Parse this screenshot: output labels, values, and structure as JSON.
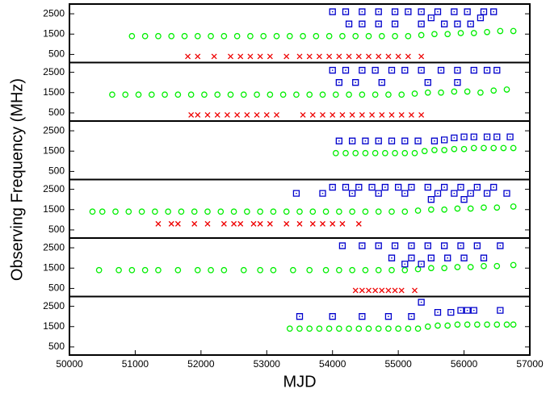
{
  "chart_data": [
    {
      "type": "scatter",
      "ylabel": "Observing Frequency (MHz)",
      "xlim": [
        50000,
        57000
      ],
      "ylim": [
        100,
        2980
      ],
      "yticks": [
        500,
        1500,
        2500
      ],
      "series": [
        {
          "color": "#00ee00",
          "marker": "circle",
          "x": [
            50950,
            51150,
            51350,
            51550,
            51750,
            51950,
            52150,
            52350,
            52550,
            52750,
            52950,
            53150,
            53350,
            53550,
            53750,
            53950,
            54150,
            54350,
            54550,
            54750,
            54950,
            55150,
            55350,
            55550,
            55750,
            55950,
            56150,
            56350,
            56550,
            56750
          ],
          "values": [
            1400,
            1400,
            1400,
            1400,
            1400,
            1400,
            1400,
            1400,
            1400,
            1400,
            1400,
            1400,
            1400,
            1400,
            1400,
            1400,
            1400,
            1400,
            1400,
            1400,
            1400,
            1400,
            1450,
            1500,
            1500,
            1550,
            1550,
            1600,
            1650,
            1650
          ]
        },
        {
          "color": "#ee0000",
          "marker": "cross",
          "x": [
            51800,
            51950,
            52200,
            52450,
            52600,
            52750,
            52900,
            53050,
            53300,
            53500,
            53650,
            53800,
            53950,
            54100,
            54250,
            54400,
            54550,
            54700,
            54850,
            55000,
            55150,
            55350
          ],
          "values": [
            400,
            400,
            400,
            400,
            400,
            400,
            400,
            400,
            400,
            400,
            400,
            400,
            400,
            400,
            400,
            400,
            400,
            400,
            400,
            400,
            400,
            400
          ]
        },
        {
          "color": "#0000cc",
          "marker": "square",
          "x": [
            54000,
            54200,
            54450,
            54700,
            54950,
            55150,
            55350,
            55600,
            55850,
            56050,
            56300,
            56450,
            54250,
            54450,
            54700,
            54950,
            55350,
            55700,
            55900,
            56100,
            55500,
            56250
          ],
          "values": [
            2600,
            2600,
            2600,
            2600,
            2600,
            2600,
            2600,
            2600,
            2600,
            2600,
            2600,
            2600,
            2000,
            2000,
            2000,
            2000,
            2000,
            2000,
            2000,
            2000,
            2300,
            2300
          ]
        }
      ]
    },
    {
      "type": "scatter",
      "xlim": [
        50000,
        57000
      ],
      "ylim": [
        100,
        2980
      ],
      "yticks": [
        500,
        1500,
        2500
      ],
      "series": [
        {
          "color": "#00ee00",
          "marker": "circle",
          "x": [
            50650,
            50850,
            51050,
            51250,
            51450,
            51650,
            51850,
            52050,
            52250,
            52450,
            52650,
            52850,
            53050,
            53250,
            53450,
            53650,
            53850,
            54050,
            54250,
            54450,
            54650,
            54850,
            55050,
            55250,
            55450,
            55650,
            55850,
            56050,
            56250,
            56450,
            56650
          ],
          "values": [
            1400,
            1400,
            1400,
            1400,
            1400,
            1400,
            1400,
            1400,
            1400,
            1400,
            1400,
            1400,
            1400,
            1400,
            1400,
            1400,
            1400,
            1400,
            1400,
            1400,
            1400,
            1400,
            1400,
            1450,
            1500,
            1500,
            1550,
            1550,
            1500,
            1600,
            1650
          ]
        },
        {
          "color": "#ee0000",
          "marker": "cross",
          "x": [
            51850,
            51950,
            52100,
            52250,
            52400,
            52550,
            52700,
            52850,
            53000,
            53150,
            53550,
            53700,
            53850,
            54000,
            54150,
            54300,
            54450,
            54600,
            54750,
            54900,
            55050,
            55200,
            55350
          ],
          "values": [
            400,
            400,
            400,
            400,
            400,
            400,
            400,
            400,
            400,
            400,
            400,
            400,
            400,
            400,
            400,
            400,
            400,
            400,
            400,
            400,
            400,
            400,
            400
          ]
        },
        {
          "color": "#0000cc",
          "marker": "square",
          "x": [
            54000,
            54200,
            54450,
            54650,
            54900,
            55100,
            55350,
            55650,
            55900,
            56150,
            56350,
            56500,
            54100,
            54350,
            54750,
            55450,
            55900
          ],
          "values": [
            2600,
            2600,
            2600,
            2600,
            2600,
            2600,
            2600,
            2600,
            2600,
            2600,
            2600,
            2600,
            2000,
            2000,
            2000,
            2000,
            2000
          ]
        }
      ]
    },
    {
      "type": "scatter",
      "xlim": [
        50000,
        57000
      ],
      "ylim": [
        100,
        2980
      ],
      "yticks": [
        500,
        1500,
        2500
      ],
      "series": [
        {
          "color": "#00ee00",
          "marker": "circle",
          "x": [
            54050,
            54200,
            54350,
            54500,
            54650,
            54800,
            54950,
            55100,
            55250,
            55400,
            55550,
            55700,
            55850,
            56000,
            56150,
            56300,
            56450,
            56600,
            56750
          ],
          "values": [
            1400,
            1400,
            1400,
            1400,
            1400,
            1400,
            1400,
            1400,
            1400,
            1500,
            1550,
            1550,
            1600,
            1600,
            1650,
            1650,
            1650,
            1650,
            1650
          ]
        },
        {
          "color": "#0000cc",
          "marker": "square",
          "x": [
            54100,
            54300,
            54500,
            54700,
            54900,
            55100,
            55300,
            55550,
            55700,
            55850,
            56000,
            56150,
            56350,
            56500,
            56700
          ],
          "values": [
            2000,
            2000,
            2000,
            2000,
            2000,
            2000,
            2000,
            2000,
            2050,
            2150,
            2200,
            2200,
            2200,
            2200,
            2200
          ]
        }
      ]
    },
    {
      "type": "scatter",
      "xlim": [
        50000,
        57000
      ],
      "ylim": [
        100,
        2980
      ],
      "yticks": [
        500,
        1500,
        2500
      ],
      "series": [
        {
          "color": "#00ee00",
          "marker": "circle",
          "x": [
            50350,
            50500,
            50700,
            50900,
            51100,
            51300,
            51500,
            51700,
            51900,
            52100,
            52300,
            52500,
            52700,
            52900,
            53100,
            53300,
            53500,
            53700,
            53900,
            54100,
            54300,
            54500,
            54700,
            54900,
            55100,
            55300,
            55500,
            55700,
            55900,
            56100,
            56300,
            56500,
            56750
          ],
          "values": [
            1400,
            1400,
            1400,
            1400,
            1400,
            1400,
            1400,
            1400,
            1400,
            1400,
            1400,
            1400,
            1400,
            1400,
            1400,
            1400,
            1400,
            1400,
            1400,
            1400,
            1400,
            1400,
            1400,
            1400,
            1400,
            1450,
            1500,
            1500,
            1550,
            1550,
            1600,
            1600,
            1650
          ]
        },
        {
          "color": "#ee0000",
          "marker": "cross",
          "x": [
            51350,
            51550,
            51650,
            51900,
            52100,
            52350,
            52500,
            52600,
            52800,
            52900,
            53050,
            53300,
            53500,
            53700,
            53850,
            54000,
            54150,
            54400
          ],
          "values": [
            800,
            800,
            800,
            800,
            800,
            800,
            800,
            800,
            800,
            800,
            800,
            800,
            800,
            800,
            800,
            800,
            800,
            800
          ]
        },
        {
          "color": "#0000cc",
          "marker": "square",
          "x": [
            54000,
            54200,
            54400,
            54600,
            54800,
            55000,
            55200,
            55450,
            55700,
            55950,
            56200,
            56450,
            53450,
            53850,
            54300,
            54700,
            55100,
            55600,
            55850,
            56100,
            56350,
            56650,
            55500,
            56000
          ],
          "values": [
            2600,
            2600,
            2600,
            2600,
            2600,
            2600,
            2600,
            2600,
            2600,
            2600,
            2600,
            2600,
            2300,
            2300,
            2300,
            2300,
            2300,
            2300,
            2300,
            2300,
            2300,
            2300,
            2000,
            2000
          ]
        }
      ]
    },
    {
      "type": "scatter",
      "xlim": [
        50000,
        57000
      ],
      "ylim": [
        100,
        2980
      ],
      "yticks": [
        500,
        1500,
        2500
      ],
      "series": [
        {
          "color": "#00ee00",
          "marker": "circle",
          "x": [
            50450,
            50750,
            50950,
            51150,
            51350,
            51650,
            51950,
            52150,
            52350,
            52650,
            52900,
            53100,
            53400,
            53650,
            53900,
            54100,
            54300,
            54500,
            54700,
            54900,
            55100,
            55300,
            55500,
            55700,
            55900,
            56100,
            56300,
            56500,
            56750
          ],
          "values": [
            1400,
            1400,
            1400,
            1400,
            1400,
            1400,
            1400,
            1400,
            1400,
            1400,
            1400,
            1400,
            1400,
            1400,
            1400,
            1400,
            1400,
            1400,
            1400,
            1400,
            1400,
            1450,
            1500,
            1500,
            1550,
            1550,
            1600,
            1600,
            1650
          ]
        },
        {
          "color": "#ee0000",
          "marker": "cross",
          "x": [
            54350,
            54450,
            54550,
            54650,
            54750,
            54850,
            54950,
            55050,
            55250
          ],
          "values": [
            400,
            400,
            400,
            400,
            400,
            400,
            400,
            400,
            400
          ]
        },
        {
          "color": "#0000cc",
          "marker": "square",
          "x": [
            54150,
            54450,
            54700,
            54950,
            55200,
            55450,
            55700,
            55950,
            56200,
            56550,
            54900,
            55200,
            55500,
            55750,
            56000,
            56300,
            55100,
            55350
          ],
          "values": [
            2600,
            2600,
            2600,
            2600,
            2600,
            2600,
            2600,
            2600,
            2600,
            2600,
            2000,
            2000,
            2000,
            2000,
            2000,
            2000,
            1700,
            1700
          ]
        }
      ]
    },
    {
      "type": "scatter",
      "xlabel": "MJD",
      "xlim": [
        50000,
        57000
      ],
      "ylim": [
        100,
        2980
      ],
      "yticks": [
        500,
        1500,
        2500
      ],
      "xticks": [
        50000,
        51000,
        52000,
        53000,
        54000,
        55000,
        56000,
        57000
      ],
      "series": [
        {
          "color": "#00ee00",
          "marker": "circle",
          "x": [
            53350,
            53500,
            53650,
            53800,
            53950,
            54100,
            54250,
            54400,
            54550,
            54700,
            54850,
            55000,
            55150,
            55300,
            55450,
            55600,
            55750,
            55900,
            56050,
            56200,
            56350,
            56500,
            56650,
            56750
          ],
          "values": [
            1400,
            1400,
            1400,
            1400,
            1400,
            1400,
            1400,
            1400,
            1400,
            1400,
            1400,
            1400,
            1400,
            1400,
            1500,
            1550,
            1550,
            1600,
            1600,
            1600,
            1600,
            1600,
            1600,
            1600
          ]
        },
        {
          "color": "#0000cc",
          "marker": "square",
          "x": [
            53500,
            54000,
            54450,
            54850,
            55200,
            55350,
            55600,
            55800,
            55950,
            56050,
            56150,
            56550
          ],
          "values": [
            2000,
            2000,
            2000,
            2000,
            2000,
            2700,
            2200,
            2200,
            2300,
            2300,
            2300,
            2300
          ]
        }
      ]
    }
  ]
}
